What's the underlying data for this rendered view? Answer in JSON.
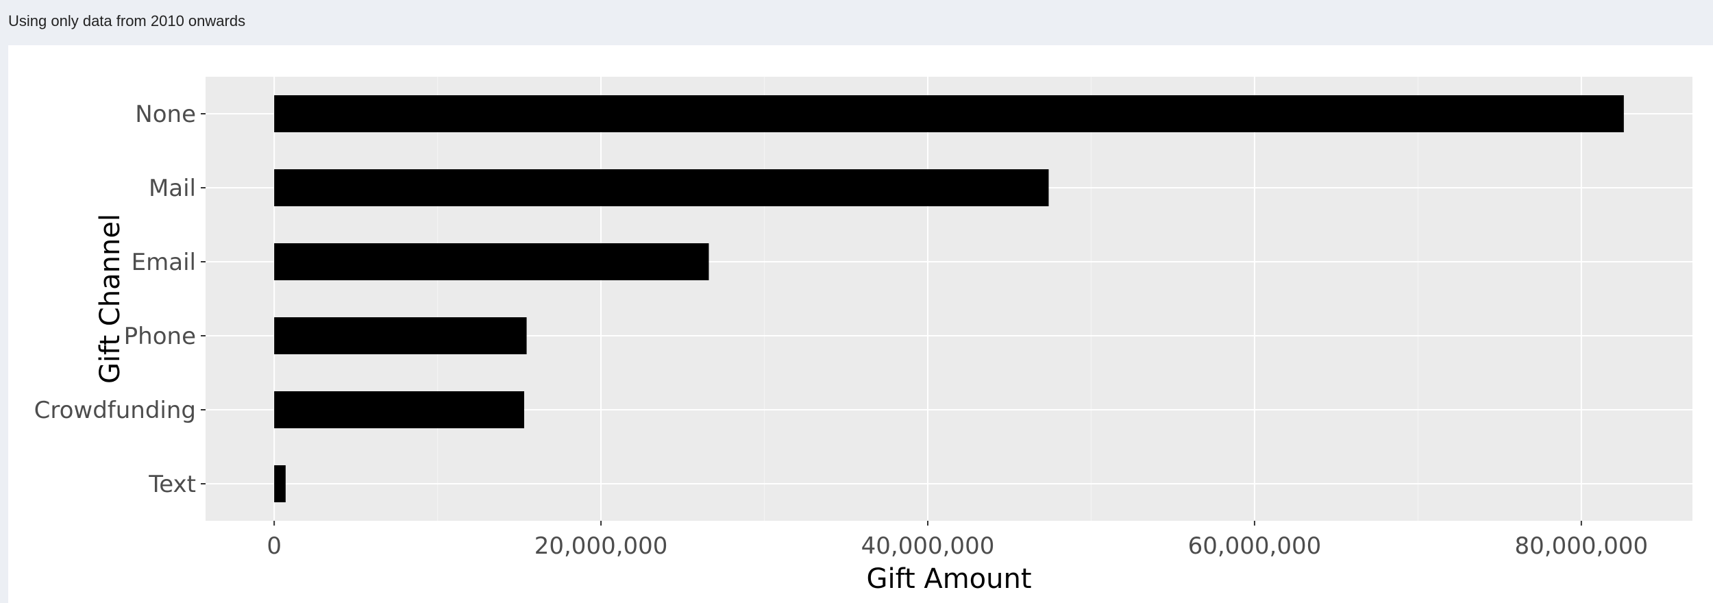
{
  "caption": "Using only data from 2010 onwards",
  "chart_data": {
    "type": "bar",
    "orientation": "horizontal",
    "categories": [
      "None",
      "Mail",
      "Email",
      "Phone",
      "Crowdfunding",
      "Text"
    ],
    "values": [
      82600000,
      47400000,
      26600000,
      15450000,
      15300000,
      700000
    ],
    "title": "",
    "xlabel": "Gift Amount",
    "ylabel": "Gift Channel",
    "xlim": [
      -4200000,
      86800000
    ],
    "xticks": [
      0,
      20000000,
      40000000,
      60000000,
      80000000
    ],
    "xtick_labels": [
      "0",
      "20,000,000",
      "40,000,000",
      "60,000,000",
      "80,000,000"
    ],
    "grid": true,
    "bar_color": "#000000",
    "panel_background": "#ebebeb",
    "grid_color": "#ffffff",
    "legend": "none"
  }
}
